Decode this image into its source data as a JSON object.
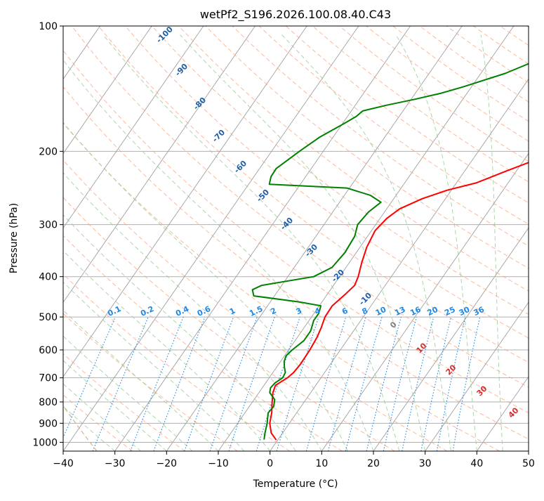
{
  "chart_data": {
    "type": "line",
    "title": "wetPf2_S196.2026.100.08.40.C43",
    "xlabel": "Temperature (°C)",
    "ylabel": "Pressure (hPa)",
    "xlim": [
      -40,
      50
    ],
    "ylim": [
      1050,
      100
    ],
    "x_ticks": [
      -40,
      -30,
      -20,
      -10,
      0,
      10,
      20,
      30,
      40,
      50
    ],
    "y_ticks": [
      100,
      200,
      300,
      400,
      500,
      600,
      700,
      800,
      900,
      1000
    ],
    "skew_per_ln_p": 24.3,
    "colors": {
      "temperature": "#ff0000",
      "dewpoint": "#008000",
      "isotherm": "#a0a0a0",
      "isobar": "#b0b0b0",
      "dry_adiabat": "#ffa07a",
      "moist_adiabat": "#90c890",
      "mixing_ratio": "#1e88e5",
      "isotherm_label": "#1f5fa8",
      "mixing_label": "#1e88e5",
      "moist_label": "#d32f2f",
      "zero_label": "#808080",
      "lcl_arc": "#d2b48c"
    },
    "series": [
      {
        "name": "Temperature",
        "points": [
          [
            987,
            -0.3
          ],
          [
            950,
            -2.2
          ],
          [
            900,
            -3.8
          ],
          [
            850,
            -4.8
          ],
          [
            800,
            -6.2
          ],
          [
            760,
            -7.3
          ],
          [
            730,
            -7.8
          ],
          [
            700,
            -6.5
          ],
          [
            680,
            -6.0
          ],
          [
            650,
            -5.8
          ],
          [
            600,
            -5.9
          ],
          [
            560,
            -6.2
          ],
          [
            530,
            -6.7
          ],
          [
            500,
            -7.4
          ],
          [
            470,
            -7.5
          ],
          [
            440,
            -6.5
          ],
          [
            420,
            -5.9
          ],
          [
            400,
            -6.4
          ],
          [
            370,
            -7.6
          ],
          [
            340,
            -8.7
          ],
          [
            310,
            -9.3
          ],
          [
            290,
            -8.7
          ],
          [
            275,
            -7.5
          ],
          [
            260,
            -4.5
          ],
          [
            248,
            -0.8
          ],
          [
            238,
            3.9
          ],
          [
            225,
            7.5
          ],
          [
            210,
            12.1
          ],
          [
            195,
            15.5
          ],
          [
            180,
            17.8
          ],
          [
            165,
            20.4
          ],
          [
            150,
            23.3
          ],
          [
            135,
            26.2
          ],
          [
            120,
            30.7
          ],
          [
            110,
            33.7
          ],
          [
            100,
            37.2
          ]
        ]
      },
      {
        "name": "Dewpoint",
        "points": [
          [
            985,
            -2.7
          ],
          [
            950,
            -3.4
          ],
          [
            900,
            -4.3
          ],
          [
            850,
            -5.5
          ],
          [
            820,
            -5.3
          ],
          [
            790,
            -6.0
          ],
          [
            760,
            -7.9
          ],
          [
            740,
            -8.4
          ],
          [
            720,
            -8.2
          ],
          [
            700,
            -7.4
          ],
          [
            680,
            -7.6
          ],
          [
            660,
            -8.5
          ],
          [
            640,
            -9.3
          ],
          [
            620,
            -9.7
          ],
          [
            600,
            -9.3
          ],
          [
            570,
            -8.3
          ],
          [
            540,
            -8.3
          ],
          [
            510,
            -9.1
          ],
          [
            490,
            -9.1
          ],
          [
            470,
            -9.7
          ],
          [
            460,
            -14.5
          ],
          [
            445,
            -24.0
          ],
          [
            430,
            -25.1
          ],
          [
            420,
            -23.9
          ],
          [
            400,
            -15.0
          ],
          [
            380,
            -12.7
          ],
          [
            350,
            -12.2
          ],
          [
            320,
            -12.5
          ],
          [
            300,
            -13.5
          ],
          [
            280,
            -13.1
          ],
          [
            265,
            -12.0
          ],
          [
            255,
            -15.0
          ],
          [
            245,
            -20.5
          ],
          [
            240,
            -36.0
          ],
          [
            230,
            -36.7
          ],
          [
            220,
            -36.8
          ],
          [
            200,
            -34.6
          ],
          [
            185,
            -32.6
          ],
          [
            172,
            -29.8
          ],
          [
            165,
            -28.3
          ],
          [
            160,
            -27.8
          ],
          [
            155,
            -24.0
          ],
          [
            150,
            -19.3
          ],
          [
            145,
            -15.0
          ],
          [
            140,
            -11.6
          ],
          [
            130,
            -5.3
          ],
          [
            120,
            -0.5
          ],
          [
            110,
            4.3
          ],
          [
            100,
            8.1
          ]
        ]
      }
    ],
    "isotherm_labels": [
      "-100",
      "-90",
      "-80",
      "-70",
      "-60",
      "-50",
      "-40",
      "-30",
      "-20",
      "-10"
    ],
    "mixing_ratio_labels": [
      "0.1",
      "0.2",
      "0.4",
      "0.6",
      "1",
      "1.5",
      "2",
      "3",
      "4",
      "6",
      "8",
      "10",
      "13",
      "16",
      "20",
      "25",
      "30",
      "36"
    ],
    "moist_adiabat_labels": [
      "0",
      "10",
      "20",
      "30",
      "40"
    ]
  }
}
